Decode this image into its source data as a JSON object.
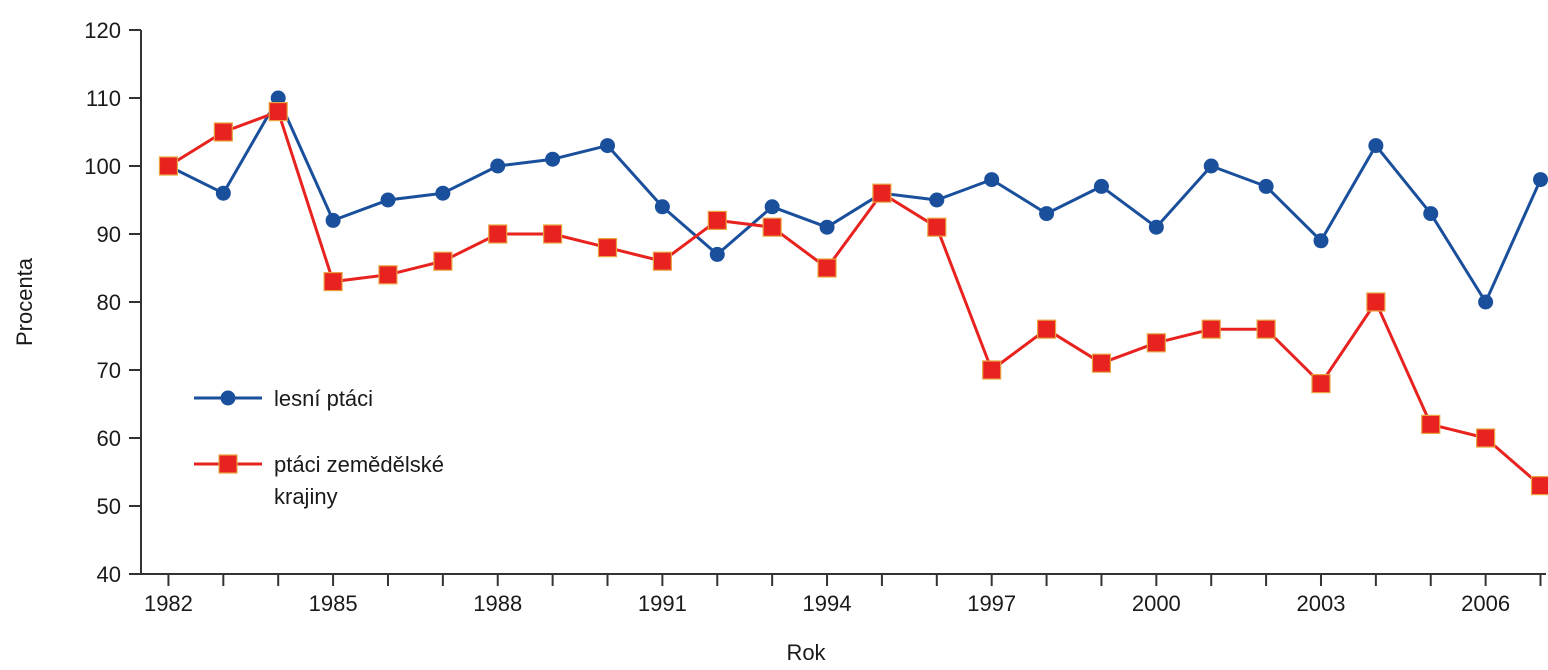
{
  "chart_data": {
    "type": "line",
    "xlabel": "Rok",
    "ylabel": "Procenta",
    "ylim": [
      40,
      120
    ],
    "yticks": [
      40,
      50,
      60,
      70,
      80,
      90,
      100,
      110,
      120
    ],
    "xlim": [
      1981.5,
      2007.1
    ],
    "xtick_labels": [
      "1982",
      "1985",
      "1988",
      "1991",
      "1994",
      "1997",
      "2000",
      "2003",
      "2006"
    ],
    "grid": false,
    "legend_position": "left",
    "x": [
      1982,
      1983,
      1984,
      1985,
      1986,
      1987,
      1988,
      1989,
      1990,
      1991,
      1992,
      1993,
      1994,
      1995,
      1996,
      1997,
      1998,
      1999,
      2000,
      2001,
      2002,
      2003,
      2004,
      2005,
      2006,
      2007
    ],
    "series": [
      {
        "name": "lesní ptáci",
        "color": "#1a4f9c",
        "marker": "circle",
        "values": [
          100,
          96,
          110,
          92,
          95,
          96,
          100,
          101,
          103,
          94,
          87,
          94,
          91,
          96,
          95,
          98,
          93,
          97,
          91,
          100,
          97,
          89,
          103,
          93,
          80,
          98
        ]
      },
      {
        "name": "ptáci zemědělské krajiny",
        "color": "#e8231f",
        "marker": "square",
        "values": [
          100,
          105,
          108,
          83,
          84,
          86,
          90,
          90,
          88,
          86,
          92,
          91,
          85,
          96,
          91,
          70,
          76,
          71,
          74,
          76,
          76,
          68,
          80,
          62,
          60,
          53
        ]
      }
    ]
  },
  "legend": {
    "items": [
      {
        "lines": [
          "lesní ptáci"
        ]
      },
      {
        "lines": [
          "ptáci zemědělské",
          "krajiny"
        ]
      }
    ]
  }
}
